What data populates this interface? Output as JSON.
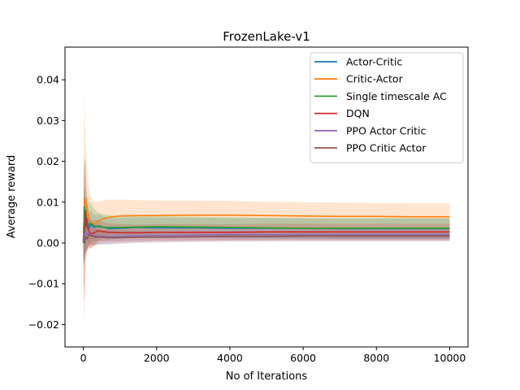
{
  "chart_data": {
    "type": "line",
    "title": "FrozenLake-v1",
    "xlabel": "No of Iterations",
    "ylabel": "Average reward",
    "xlim": [
      -500,
      10500
    ],
    "ylim": [
      -0.0255,
      0.048
    ],
    "xticks": [
      0,
      2000,
      4000,
      6000,
      8000,
      10000
    ],
    "xtick_labels": [
      "0",
      "2000",
      "4000",
      "6000",
      "8000",
      "10000"
    ],
    "yticks": [
      -0.02,
      -0.01,
      0.0,
      0.01,
      0.02,
      0.03,
      0.04
    ],
    "ytick_labels": [
      "−0.02",
      "−0.01",
      "0.00",
      "0.01",
      "0.02",
      "0.03",
      "0.04"
    ],
    "grid": false,
    "legend_position": "top-right",
    "series": [
      {
        "name": "Actor-Critic",
        "color": "#1f77b4",
        "x": [
          0,
          30,
          60,
          100,
          150,
          200,
          300,
          400,
          500,
          700,
          1000,
          1500,
          2000,
          3000,
          4000,
          5000,
          6000,
          7000,
          8000,
          9000,
          10000
        ],
        "y": [
          0.0,
          0.009,
          0.004,
          0.006,
          0.0035,
          0.0045,
          0.0038,
          0.0042,
          0.004,
          0.0035,
          0.0036,
          0.0038,
          0.0037,
          0.0037,
          0.0036,
          0.0036,
          0.0036,
          0.0035,
          0.0035,
          0.0035,
          0.0035
        ],
        "band": [
          0.006,
          0.012,
          0.006,
          0.005,
          0.004,
          0.0035,
          0.003,
          0.0028,
          0.0027,
          0.0026,
          0.0025,
          0.0025,
          0.0025,
          0.0025,
          0.0025,
          0.0025,
          0.0025,
          0.0025,
          0.0025,
          0.0025,
          0.0025
        ]
      },
      {
        "name": "Critic-Actor",
        "color": "#ff7f0e",
        "x": [
          0,
          30,
          60,
          100,
          150,
          200,
          300,
          400,
          500,
          700,
          1000,
          1500,
          2000,
          3000,
          4000,
          5000,
          6000,
          7000,
          8000,
          9000,
          10000
        ],
        "y": [
          0.0,
          0.011,
          0.01,
          0.0085,
          0.0062,
          0.005,
          0.0045,
          0.0052,
          0.0058,
          0.0063,
          0.0066,
          0.0067,
          0.0067,
          0.0068,
          0.0068,
          0.0067,
          0.0066,
          0.0065,
          0.0065,
          0.0064,
          0.0064
        ],
        "band": [
          0.01,
          0.025,
          0.015,
          0.01,
          0.0075,
          0.0065,
          0.0055,
          0.005,
          0.0046,
          0.0043,
          0.004,
          0.0038,
          0.0037,
          0.0036,
          0.0035,
          0.0034,
          0.0034,
          0.0034,
          0.0033,
          0.0033,
          0.0033
        ]
      },
      {
        "name": "Single timescale AC",
        "color": "#2ca02c",
        "x": [
          0,
          30,
          60,
          100,
          150,
          200,
          300,
          400,
          500,
          700,
          1000,
          1500,
          2000,
          3000,
          4000,
          5000,
          6000,
          7000,
          8000,
          9000,
          10000
        ],
        "y": [
          0.0,
          0.0088,
          0.0055,
          0.005,
          0.0045,
          0.0048,
          0.0042,
          0.004,
          0.0039,
          0.0038,
          0.0038,
          0.0039,
          0.004,
          0.0039,
          0.0038,
          0.0037,
          0.0036,
          0.0036,
          0.0036,
          0.0036,
          0.0036
        ],
        "band": [
          0.006,
          0.013,
          0.008,
          0.0065,
          0.0055,
          0.005,
          0.004,
          0.0035,
          0.0032,
          0.003,
          0.0028,
          0.0027,
          0.0026,
          0.0025,
          0.0025,
          0.0025,
          0.0025,
          0.0025,
          0.0025,
          0.0025,
          0.0025
        ]
      },
      {
        "name": "DQN",
        "color": "#d62728",
        "x": [
          0,
          30,
          60,
          100,
          150,
          200,
          300,
          400,
          500,
          700,
          1000,
          1500,
          2000,
          3000,
          4000,
          5000,
          6000,
          7000,
          8000,
          9000,
          10000
        ],
        "y": [
          0.0,
          0.0005,
          0.008,
          0.004,
          0.003,
          0.0022,
          0.0025,
          0.003,
          0.0028,
          0.0026,
          0.0025,
          0.0025,
          0.0026,
          0.0026,
          0.0026,
          0.0027,
          0.0027,
          0.0027,
          0.0027,
          0.0027,
          0.0027
        ],
        "band": [
          0.005,
          0.02,
          0.012,
          0.006,
          0.004,
          0.0035,
          0.003,
          0.0027,
          0.0025,
          0.0022,
          0.0021,
          0.002,
          0.002,
          0.002,
          0.002,
          0.002,
          0.002,
          0.002,
          0.002,
          0.002,
          0.002
        ]
      },
      {
        "name": "PPO Actor Critic",
        "color": "#9467bd",
        "x": [
          0,
          30,
          60,
          100,
          150,
          200,
          300,
          400,
          500,
          700,
          1000,
          1500,
          2000,
          3000,
          4000,
          5000,
          6000,
          7000,
          8000,
          9000,
          10000
        ],
        "y": [
          0.0,
          0.002,
          0.003,
          0.002,
          0.0025,
          0.002,
          0.0018,
          0.0017,
          0.0016,
          0.0015,
          0.0016,
          0.0017,
          0.0018,
          0.0019,
          0.002,
          0.002,
          0.002,
          0.002,
          0.002,
          0.002,
          0.002
        ],
        "band": [
          0.004,
          0.006,
          0.005,
          0.004,
          0.003,
          0.0027,
          0.0024,
          0.0022,
          0.002,
          0.0018,
          0.0016,
          0.0015,
          0.0015,
          0.0014,
          0.0014,
          0.0014,
          0.0014,
          0.0014,
          0.0014,
          0.0014,
          0.0014
        ]
      },
      {
        "name": "PPO Critic Actor",
        "color": "#8c564b",
        "x": [
          0,
          30,
          60,
          100,
          150,
          200,
          300,
          400,
          500,
          700,
          1000,
          1500,
          2000,
          3000,
          4000,
          5000,
          6000,
          7000,
          8000,
          9000,
          10000
        ],
        "y": [
          0.0,
          0.0,
          0.0015,
          0.001,
          0.002,
          0.0018,
          0.0015,
          0.0014,
          0.0014,
          0.0013,
          0.0013,
          0.0014,
          0.0014,
          0.0015,
          0.0016,
          0.0016,
          0.0017,
          0.0017,
          0.0017,
          0.0017,
          0.0017
        ],
        "band": [
          0.003,
          0.005,
          0.004,
          0.003,
          0.0025,
          0.0022,
          0.002,
          0.0018,
          0.0017,
          0.0016,
          0.0015,
          0.0014,
          0.0013,
          0.0013,
          0.0013,
          0.0013,
          0.0013,
          0.0013,
          0.0013,
          0.0013,
          0.0013
        ]
      }
    ]
  }
}
